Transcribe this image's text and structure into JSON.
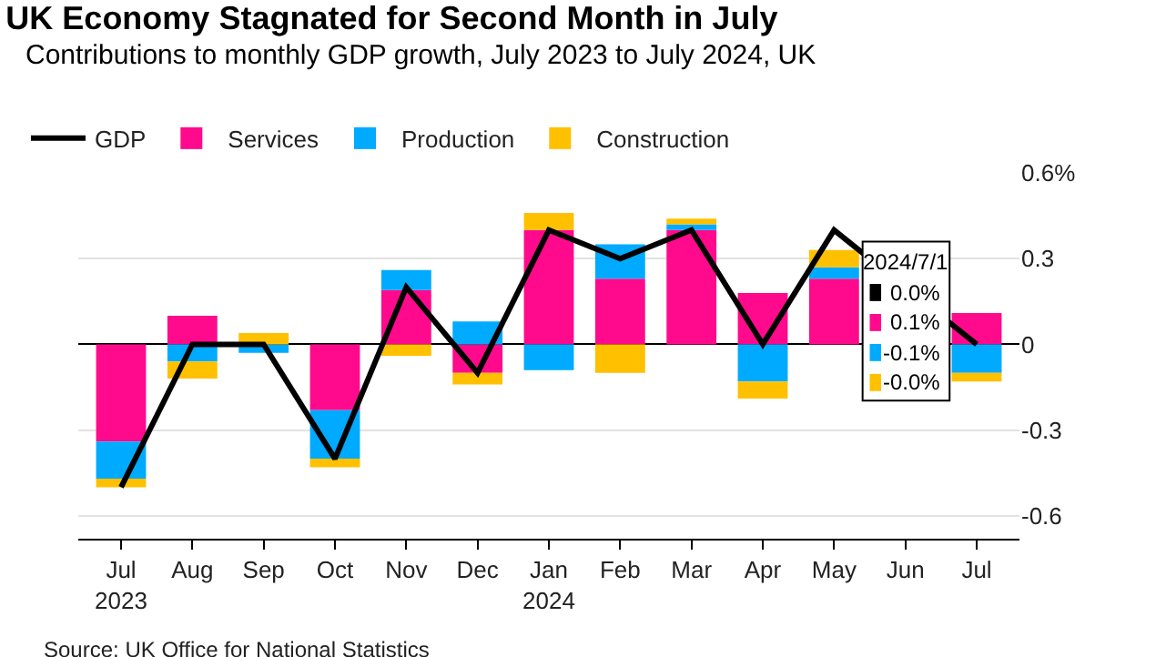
{
  "chart_data": {
    "type": "bar",
    "stacked": true,
    "title": "UK Economy Stagnated for Second Month in July",
    "subtitle": "Contributions to monthly GDP growth, July 2023 to July 2024, UK",
    "categories": [
      "Jul\n2023",
      "Aug",
      "Sep",
      "Oct",
      "Nov",
      "Dec",
      "Jan\n2024",
      "Feb",
      "Mar",
      "Apr",
      "May",
      "Jun",
      "Jul"
    ],
    "series": [
      {
        "name": "GDP",
        "type": "line",
        "color": "#000000",
        "values": [
          -0.5,
          0.0,
          0.0,
          -0.4,
          0.2,
          -0.1,
          0.4,
          0.3,
          0.4,
          0.0,
          0.4,
          null,
          0.0
        ]
      },
      {
        "name": "Services",
        "color": "#ff0a8c",
        "values": [
          -0.34,
          0.1,
          0.0,
          -0.23,
          0.19,
          -0.1,
          0.4,
          0.23,
          0.4,
          0.18,
          0.23,
          null,
          0.11
        ]
      },
      {
        "name": "Production",
        "color": "#00aaff",
        "values": [
          -0.13,
          -0.06,
          -0.03,
          -0.17,
          0.07,
          0.08,
          -0.09,
          0.12,
          0.02,
          -0.13,
          0.04,
          null,
          -0.1
        ]
      },
      {
        "name": "Construction",
        "color": "#ffc000",
        "values": [
          -0.03,
          -0.06,
          0.04,
          -0.03,
          -0.04,
          -0.04,
          0.06,
          -0.1,
          0.02,
          -0.06,
          0.06,
          null,
          -0.03
        ]
      }
    ],
    "ylim": [
      -0.68,
      0.6
    ],
    "yticks": [
      {
        "value": 0.6,
        "label": "0.6%"
      },
      0.3,
      0,
      -0.3,
      -0.6
    ],
    "grid": "y",
    "legend": "top left",
    "annotations": [
      "2024/7/1\n0.0%\n0.1%\n-0.1%\n-0.0%",
      "Source: UK Office for National Statistics"
    ]
  }
}
